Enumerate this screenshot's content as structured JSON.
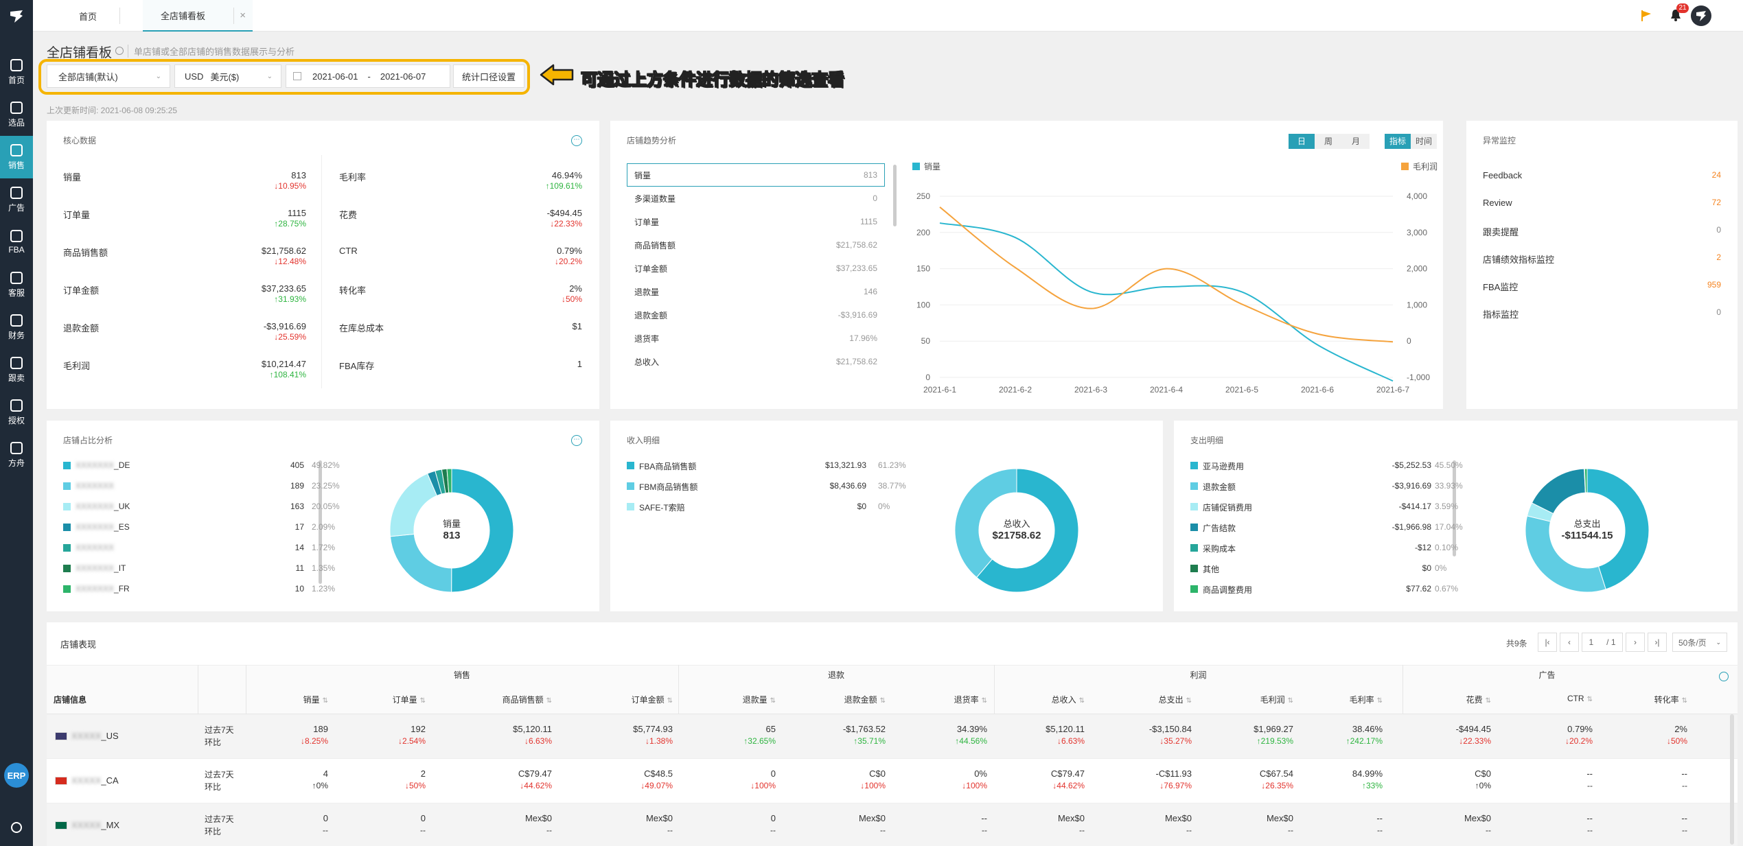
{
  "sidebar": {
    "items": [
      {
        "label": "首页",
        "icon": "home-icon"
      },
      {
        "label": "选品",
        "icon": "search-icon"
      },
      {
        "label": "销售",
        "icon": "chart-line-icon"
      },
      {
        "label": "广告",
        "icon": "ad-icon"
      },
      {
        "label": "FBA",
        "icon": "box-icon"
      },
      {
        "label": "客服",
        "icon": "service-icon"
      },
      {
        "label": "财务",
        "icon": "finance-icon"
      },
      {
        "label": "跟卖",
        "icon": "pie-icon"
      },
      {
        "label": "授权",
        "icon": "shield-icon"
      },
      {
        "label": "方舟",
        "icon": "ark-icon"
      }
    ],
    "erp_badge": "ERP"
  },
  "topbar": {
    "tabs": [
      "首页",
      "全店铺看板"
    ],
    "tab_close": "×",
    "notification_count": "21"
  },
  "page": {
    "title": "全店铺看板",
    "subtitle": "单店铺或全部店铺的销售数据展示与分析",
    "last_update_label": "上次更新时间: 2021-06-08 09:25:25",
    "annotation": "可通过上方条件进行数据的筛选查看"
  },
  "filters": {
    "store_select": "全部店铺(默认)",
    "currency_code": "USD",
    "currency_select": "美元($)",
    "date_start": "2021-06-01",
    "date_sep": "-",
    "date_end": "2021-06-07",
    "caliber_button": "统计口径设置"
  },
  "core": {
    "title": "核心数据",
    "left": [
      {
        "label": "销量",
        "value": "813",
        "change": "↓10.95%",
        "dir": "down"
      },
      {
        "label": "订单量",
        "value": "1115",
        "change": "↑28.75%",
        "dir": "up"
      },
      {
        "label": "商品销售额",
        "value": "$21,758.62",
        "change": "↓12.48%",
        "dir": "down"
      },
      {
        "label": "订单金额",
        "value": "$37,233.65",
        "change": "↑31.93%",
        "dir": "up"
      },
      {
        "label": "退款金额",
        "value": "-$3,916.69",
        "change": "↓25.59%",
        "dir": "down"
      },
      {
        "label": "毛利润",
        "value": "$10,214.47",
        "change": "↑108.41%",
        "dir": "up"
      }
    ],
    "right": [
      {
        "label": "毛利率",
        "value": "46.94%",
        "change": "↑109.61%",
        "dir": "up"
      },
      {
        "label": "花费",
        "value": "-$494.45",
        "change": "↓22.33%",
        "dir": "down"
      },
      {
        "label": "CTR",
        "value": "0.79%",
        "change": "↓20.2%",
        "dir": "down"
      },
      {
        "label": "转化率",
        "value": "2%",
        "change": "↓50%",
        "dir": "down"
      },
      {
        "label": "在库总成本",
        "value": "$1",
        "change": "",
        "dir": ""
      },
      {
        "label": "FBA库存",
        "value": "1",
        "change": "",
        "dir": ""
      }
    ]
  },
  "trend": {
    "title": "店铺趋势分析",
    "period_buttons": [
      "日",
      "周",
      "月"
    ],
    "mode_buttons": [
      "指标",
      "时间"
    ],
    "metrics": [
      {
        "label": "销量",
        "value": "813"
      },
      {
        "label": "多渠道数量",
        "value": "0"
      },
      {
        "label": "订单量",
        "value": "1115"
      },
      {
        "label": "商品销售额",
        "value": "$21,758.62"
      },
      {
        "label": "订单金额",
        "value": "$37,233.65"
      },
      {
        "label": "退款量",
        "value": "146"
      },
      {
        "label": "退款金额",
        "value": "-$3,916.69"
      },
      {
        "label": "退货率",
        "value": "17.96%"
      },
      {
        "label": "总收入",
        "value": "$21,758.62"
      }
    ],
    "legend_left": "销量",
    "legend_right": "毛利润"
  },
  "chart_data": {
    "type": "line",
    "x": [
      "2021-6-1",
      "2021-6-2",
      "2021-6-3",
      "2021-6-4",
      "2021-6-5",
      "2021-6-6",
      "2021-6-7"
    ],
    "series": [
      {
        "name": "销量",
        "axis": "left",
        "color": "#29b6cf",
        "values": [
          213,
          193,
          118,
          125,
          118,
          45,
          -5
        ]
      },
      {
        "name": "毛利润",
        "axis": "right",
        "color": "#f5a33d",
        "values": [
          3700,
          2030,
          900,
          2000,
          1020,
          200,
          -20
        ]
      }
    ],
    "ylim_left": [
      0,
      250
    ],
    "yticks_left": [
      "0",
      "50",
      "100",
      "150",
      "200",
      "250"
    ],
    "ylim_right": [
      -1000,
      4000
    ],
    "yticks_right": [
      "-1,000",
      "0",
      "1,000",
      "2,000",
      "3,000",
      "4,000"
    ]
  },
  "anomaly": {
    "title": "异常监控",
    "items": [
      {
        "label": "Feedback",
        "value": "24",
        "style": "orange"
      },
      {
        "label": "Review",
        "value": "72",
        "style": "orange"
      },
      {
        "label": "跟卖提醒",
        "value": "0",
        "style": "muted"
      },
      {
        "label": "店铺绩效指标监控",
        "value": "2",
        "style": "orange"
      },
      {
        "label": "FBA监控",
        "value": "959",
        "style": "orange"
      },
      {
        "label": "指标监控",
        "value": "0",
        "style": "muted"
      }
    ]
  },
  "share": {
    "title": "店铺占比分析",
    "center_label": "销量",
    "center_value": "813",
    "items": [
      {
        "name": "_DE",
        "value": "405",
        "pct": "49.82%",
        "color": "#29b6cf"
      },
      {
        "name": "",
        "value": "189",
        "pct": "23.25%",
        "color": "#5fcde3"
      },
      {
        "name": "_UK",
        "value": "163",
        "pct": "20.05%",
        "color": "#a7ecf4"
      },
      {
        "name": "_ES",
        "value": "17",
        "pct": "2.09%",
        "color": "#1b8ea8"
      },
      {
        "name": "",
        "value": "14",
        "pct": "1.72%",
        "color": "#26a69a"
      },
      {
        "name": "_IT",
        "value": "11",
        "pct": "1.35%",
        "color": "#1e7d4f"
      },
      {
        "name": "_FR",
        "value": "10",
        "pct": "1.23%",
        "color": "#2db46a"
      }
    ]
  },
  "income": {
    "title": "收入明细",
    "center_label": "总收入",
    "center_value": "$21758.62",
    "items": [
      {
        "name": "FBA商品销售额",
        "value": "$13,321.93",
        "pct": "61.23%",
        "color": "#29b6cf"
      },
      {
        "name": "FBM商品销售额",
        "value": "$8,436.69",
        "pct": "38.77%",
        "color": "#5fcde3"
      },
      {
        "name": "SAFE-T索赔",
        "value": "$0",
        "pct": "0%",
        "color": "#a7ecf4"
      }
    ]
  },
  "expense": {
    "title": "支出明细",
    "center_label": "总支出",
    "center_value": "-$11544.15",
    "items": [
      {
        "name": "亚马逊费用",
        "value": "-$5,252.53",
        "pct": "45.50%",
        "color": "#29b6cf"
      },
      {
        "name": "退款金额",
        "value": "-$3,916.69",
        "pct": "33.93%",
        "color": "#5fcde3"
      },
      {
        "name": "店铺促销费用",
        "value": "-$414.17",
        "pct": "3.59%",
        "color": "#a7ecf4"
      },
      {
        "name": "广告结款",
        "value": "-$1,966.98",
        "pct": "17.04%",
        "color": "#1b8ea8"
      },
      {
        "name": "采购成本",
        "value": "-$12",
        "pct": "0.10%",
        "color": "#26a69a"
      },
      {
        "name": "其他",
        "value": "$0",
        "pct": "0%",
        "color": "#1e7d4f"
      },
      {
        "name": "商品调整费用",
        "value": "$77.62",
        "pct": "0.67%",
        "color": "#2db46a"
      }
    ]
  },
  "store_table": {
    "title": "店铺表现",
    "total": "共9条",
    "page_current": "1",
    "page_total": "/ 1",
    "page_size": "50条/页",
    "groups": [
      "销售",
      "退款",
      "利润",
      "广告"
    ],
    "columns": [
      "店铺信息",
      "销量",
      "订单量",
      "商品销售额",
      "订单金额",
      "退款量",
      "退款金额",
      "退货率",
      "总收入",
      "总支出",
      "毛利润",
      "毛利率",
      "花费",
      "CTR",
      "转化率"
    ],
    "period_labels": [
      "过去7天",
      "环比"
    ],
    "rows": [
      {
        "store": "_US",
        "flag": "us",
        "cells": [
          [
            "189",
            "↓8.25%",
            "down"
          ],
          [
            "192",
            "↓2.54%",
            "down"
          ],
          [
            "$5,120.11",
            "↓6.63%",
            "down"
          ],
          [
            "$5,774.93",
            "↓1.38%",
            "down"
          ],
          [
            "65",
            "↑32.65%",
            "up"
          ],
          [
            "-$1,763.52",
            "↑35.71%",
            "up"
          ],
          [
            "34.39%",
            "↑44.56%",
            "up"
          ],
          [
            "$5,120.11",
            "↓6.63%",
            "down"
          ],
          [
            "-$3,150.84",
            "↓35.27%",
            "down"
          ],
          [
            "$1,969.27",
            "↑219.53%",
            "up"
          ],
          [
            "38.46%",
            "↑242.17%",
            "up"
          ],
          [
            "-$494.45",
            "↓22.33%",
            "down"
          ],
          [
            "0.79%",
            "↓20.2%",
            "down"
          ],
          [
            "2%",
            "↓50%",
            "down"
          ]
        ]
      },
      {
        "store": "_CA",
        "flag": "ca",
        "cells": [
          [
            "4",
            "↑0%",
            "flat"
          ],
          [
            "2",
            "↓50%",
            "down"
          ],
          [
            "C$79.47",
            "↓44.62%",
            "down"
          ],
          [
            "C$48.5",
            "↓49.07%",
            "down"
          ],
          [
            "0",
            "↓100%",
            "down"
          ],
          [
            "C$0",
            "↓100%",
            "down"
          ],
          [
            "0%",
            "↓100%",
            "down"
          ],
          [
            "C$79.47",
            "↓44.62%",
            "down"
          ],
          [
            "-C$11.93",
            "↓76.97%",
            "down"
          ],
          [
            "C$67.54",
            "↓26.35%",
            "down"
          ],
          [
            "84.99%",
            "↑33%",
            "up"
          ],
          [
            "C$0",
            "↑0%",
            "flat"
          ],
          [
            "--",
            "--",
            "flat"
          ],
          [
            "--",
            "--",
            "flat"
          ]
        ]
      },
      {
        "store": "_MX",
        "flag": "mx",
        "cells": [
          [
            "0",
            "--",
            "flat"
          ],
          [
            "0",
            "--",
            "flat"
          ],
          [
            "Mex$0",
            "--",
            "flat"
          ],
          [
            "Mex$0",
            "--",
            "flat"
          ],
          [
            "0",
            "--",
            "flat"
          ],
          [
            "Mex$0",
            "--",
            "flat"
          ],
          [
            "--",
            "--",
            "flat"
          ],
          [
            "Mex$0",
            "--",
            "flat"
          ],
          [
            "Mex$0",
            "--",
            "flat"
          ],
          [
            "Mex$0",
            "--",
            "flat"
          ],
          [
            "--",
            "--",
            "flat"
          ],
          [
            "Mex$0",
            "--",
            "flat"
          ],
          [
            "--",
            "--",
            "flat"
          ],
          [
            "--",
            "--",
            "flat"
          ]
        ]
      }
    ]
  }
}
